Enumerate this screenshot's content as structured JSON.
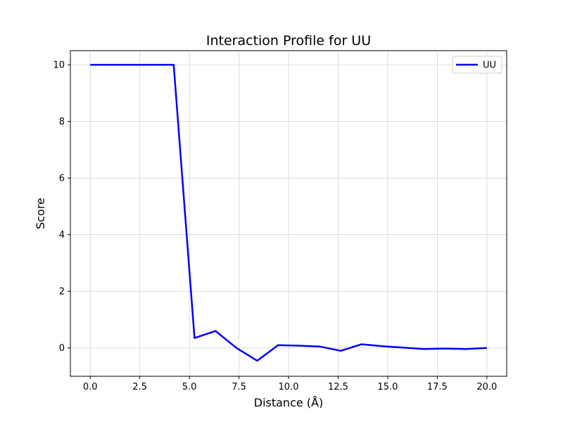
{
  "chart_data": {
    "type": "line",
    "title": "Interaction Profile for UU",
    "xlabel": "Distance (Å)",
    "ylabel": "Score",
    "xlim": [
      -1.0,
      21.0
    ],
    "ylim": [
      -1.0,
      10.5
    ],
    "xticks": [
      0.0,
      2.5,
      5.0,
      7.5,
      10.0,
      12.5,
      15.0,
      17.5,
      20.0
    ],
    "xtick_labels": [
      "0.0",
      "2.5",
      "5.0",
      "7.5",
      "10.0",
      "12.5",
      "15.0",
      "17.5",
      "20.0"
    ],
    "yticks": [
      0,
      2,
      4,
      6,
      8,
      10
    ],
    "ytick_labels": [
      "0",
      "2",
      "4",
      "6",
      "8",
      "10"
    ],
    "grid": true,
    "legend_position": "top-right",
    "series": [
      {
        "name": "UU",
        "color": "#0000ff",
        "x": [
          0.0,
          1.05,
          2.11,
          3.16,
          4.21,
          5.26,
          6.32,
          7.37,
          8.42,
          9.47,
          10.53,
          11.58,
          12.63,
          13.68,
          14.74,
          15.79,
          16.84,
          17.89,
          18.95,
          20.0
        ],
        "y": [
          10.0,
          10.0,
          10.0,
          10.0,
          10.0,
          0.35,
          0.6,
          0.0,
          -0.45,
          0.1,
          0.08,
          0.05,
          -0.1,
          0.13,
          0.06,
          0.01,
          -0.04,
          -0.02,
          -0.04,
          0.0
        ]
      }
    ]
  }
}
